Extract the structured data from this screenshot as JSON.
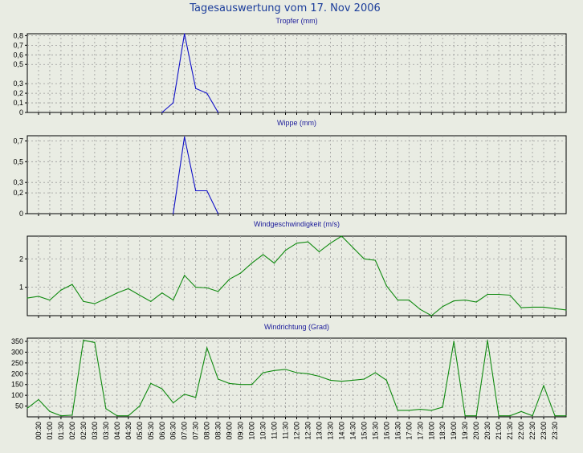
{
  "title": "Tagesauswertung vom 17. Nov 2006",
  "x_labels": [
    "00:30",
    "01:00",
    "01:30",
    "02:00",
    "02:30",
    "03:00",
    "03:30",
    "04:00",
    "04:30",
    "05:00",
    "05:30",
    "06:00",
    "06:30",
    "07:00",
    "07:30",
    "08:00",
    "08:30",
    "09:00",
    "09:30",
    "10:00",
    "10:30",
    "11:00",
    "11:30",
    "12:00",
    "12:30",
    "13:00",
    "13:30",
    "14:00",
    "14:30",
    "15:00",
    "15:30",
    "16:00",
    "16:30",
    "17:00",
    "17:30",
    "18:00",
    "18:30",
    "19:00",
    "19:30",
    "20:00",
    "20:30",
    "21:00",
    "21:30",
    "22:00",
    "22:30",
    "23:00",
    "23:30"
  ],
  "chart_data": [
    {
      "type": "line",
      "title": "Tropfer (mm)",
      "ylim": [
        0,
        0.82
      ],
      "yticks": [
        {
          "v": 0,
          "label": "0"
        },
        {
          "v": 0.1,
          "label": "0,1"
        },
        {
          "v": 0.2,
          "label": "0,2"
        },
        {
          "v": 0.3,
          "label": "0,3"
        },
        {
          "v": 0.5,
          "label": "0,5"
        },
        {
          "v": 0.6,
          "label": "0,6"
        },
        {
          "v": 0.7,
          "label": "0,7"
        },
        {
          "v": 0.8,
          "label": "0,8"
        }
      ],
      "grid": true,
      "color": "#1010c8",
      "x": [
        "06:00",
        "06:30",
        "07:00",
        "07:30",
        "08:00",
        "08:30"
      ],
      "y": [
        0,
        0.1,
        0.82,
        0.25,
        0.2,
        0
      ]
    },
    {
      "type": "line",
      "title": "Wippe (mm)",
      "ylim": [
        0,
        0.75
      ],
      "yticks": [
        {
          "v": 0,
          "label": "0"
        },
        {
          "v": 0.2,
          "label": "0,2"
        },
        {
          "v": 0.3,
          "label": "0,3"
        },
        {
          "v": 0.5,
          "label": "0,5"
        },
        {
          "v": 0.7,
          "label": "0,7"
        }
      ],
      "grid": true,
      "color": "#1010c8",
      "x": [
        "06:30",
        "07:00",
        "07:30",
        "08:00",
        "08:30"
      ],
      "y": [
        0,
        0.74,
        0.22,
        0.22,
        0
      ]
    },
    {
      "type": "line",
      "title": "Windgeschwindigkeit (m/s)",
      "ylim": [
        0,
        2.8
      ],
      "yticks": [
        {
          "v": 1,
          "label": "1"
        },
        {
          "v": 2,
          "label": "2"
        }
      ],
      "grid": true,
      "color": "#108a10",
      "x": [
        "00:00",
        "00:30",
        "01:00",
        "01:30",
        "02:00",
        "02:30",
        "03:00",
        "03:30",
        "04:00",
        "04:30",
        "05:00",
        "05:30",
        "06:00",
        "06:30",
        "07:00",
        "07:30",
        "08:00",
        "08:30",
        "09:00",
        "09:30",
        "10:00",
        "10:30",
        "11:00",
        "11:30",
        "12:00",
        "12:30",
        "13:00",
        "13:30",
        "14:00",
        "14:30",
        "15:00",
        "15:30",
        "16:00",
        "16:30",
        "17:00",
        "17:30",
        "18:00",
        "18:30",
        "19:00",
        "19:30",
        "20:00",
        "20:30",
        "21:00",
        "21:30",
        "22:00",
        "22:30",
        "23:00",
        "23:30",
        "24:00"
      ],
      "y": [
        0.62,
        0.68,
        0.55,
        0.9,
        1.1,
        0.5,
        0.42,
        0.6,
        0.8,
        0.95,
        0.72,
        0.5,
        0.8,
        0.55,
        1.42,
        1.0,
        0.98,
        0.85,
        1.28,
        1.5,
        1.85,
        2.15,
        1.85,
        2.3,
        2.55,
        2.6,
        2.25,
        2.55,
        2.8,
        2.4,
        2.0,
        1.95,
        1.05,
        0.55,
        0.55,
        0.22,
        0.0,
        0.32,
        0.52,
        0.55,
        0.48,
        0.75,
        0.75,
        0.72,
        0.28,
        0.3,
        0.3,
        0.25,
        0.2
      ]
    },
    {
      "type": "line",
      "title": "Windrichtung (Grad)",
      "ylim": [
        0,
        365
      ],
      "yticks": [
        {
          "v": 50,
          "label": "50"
        },
        {
          "v": 100,
          "label": "100"
        },
        {
          "v": 150,
          "label": "150"
        },
        {
          "v": 200,
          "label": "200"
        },
        {
          "v": 250,
          "label": "250"
        },
        {
          "v": 300,
          "label": "300"
        },
        {
          "v": 350,
          "label": "350"
        }
      ],
      "grid": true,
      "color": "#108a10",
      "x": [
        "00:00",
        "00:30",
        "01:00",
        "01:30",
        "02:00",
        "02:30",
        "03:00",
        "03:30",
        "04:00",
        "04:30",
        "05:00",
        "05:30",
        "06:00",
        "06:30",
        "07:00",
        "07:30",
        "08:00",
        "08:30",
        "09:00",
        "09:30",
        "10:00",
        "10:30",
        "11:00",
        "11:30",
        "12:00",
        "12:30",
        "13:00",
        "13:30",
        "14:00",
        "14:30",
        "15:00",
        "15:30",
        "16:00",
        "16:30",
        "17:00",
        "17:30",
        "18:00",
        "18:30",
        "19:00",
        "19:30",
        "20:00",
        "20:30",
        "21:00",
        "21:30",
        "22:00",
        "22:30",
        "23:00",
        "23:30",
        "24:00"
      ],
      "y": [
        40,
        80,
        25,
        5,
        8,
        355,
        345,
        38,
        5,
        5,
        50,
        155,
        130,
        65,
        105,
        90,
        320,
        175,
        155,
        150,
        150,
        205,
        215,
        220,
        205,
        200,
        188,
        170,
        165,
        170,
        175,
        205,
        170,
        30,
        30,
        35,
        30,
        45,
        350,
        5,
        5,
        355,
        5,
        5,
        25,
        5,
        145,
        5,
        5
      ]
    }
  ]
}
